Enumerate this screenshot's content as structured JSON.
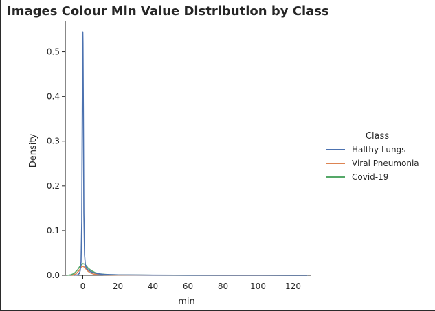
{
  "chart_data": {
    "type": "line",
    "title": "Images Colour Min Value Distribution by Class",
    "xlabel": "min",
    "ylabel": "Density",
    "xlim": [
      -10,
      130
    ],
    "ylim": [
      0,
      0.57
    ],
    "xticks": [
      0,
      20,
      40,
      60,
      80,
      100,
      120
    ],
    "yticks": [
      0.0,
      0.1,
      0.2,
      0.3,
      0.4,
      0.5
    ],
    "xtick_labels": [
      "0",
      "20",
      "40",
      "60",
      "80",
      "100",
      "120"
    ],
    "ytick_labels": [
      "0.0",
      "0.1",
      "0.2",
      "0.3",
      "0.4",
      "0.5"
    ],
    "grid": false,
    "legend": {
      "title": "Class",
      "position": "right"
    },
    "series": [
      {
        "name": "Halthy Lungs",
        "color": "#4c72b0",
        "x": [
          -5,
          -3,
          -2,
          -1.5,
          -1,
          -0.6,
          -0.3,
          -0.1,
          0,
          0.1,
          0.3,
          0.6,
          1,
          1.5,
          2,
          3,
          5,
          8,
          12,
          20,
          40,
          60,
          80,
          100,
          120,
          128
        ],
        "y": [
          0,
          0.001,
          0.004,
          0.01,
          0.03,
          0.12,
          0.38,
          0.52,
          0.545,
          0.52,
          0.38,
          0.14,
          0.045,
          0.022,
          0.016,
          0.012,
          0.007,
          0.004,
          0.002,
          0.001,
          0.0005,
          0.0003,
          0.0002,
          0.0002,
          0.0001,
          0
        ]
      },
      {
        "name": "Viral Pneumonia",
        "color": "#dd8452",
        "x": [
          -6,
          -4,
          -2,
          -1,
          0,
          1,
          2,
          3,
          4,
          6,
          8,
          12,
          20,
          40,
          60,
          80,
          100,
          120,
          128
        ],
        "y": [
          0,
          0.003,
          0.011,
          0.018,
          0.02,
          0.018,
          0.013,
          0.009,
          0.006,
          0.003,
          0.002,
          0.001,
          0.0006,
          0.0003,
          0.0002,
          0.0001,
          0.0001,
          0.0001,
          0
        ]
      },
      {
        "name": "Covid-19",
        "color": "#55a868",
        "x": [
          -9,
          -7,
          -5,
          -3,
          -1.5,
          0,
          1,
          2,
          3,
          5,
          7,
          10,
          15,
          20,
          30,
          40,
          60,
          80,
          100,
          120,
          128
        ],
        "y": [
          0,
          0.001,
          0.004,
          0.012,
          0.021,
          0.026,
          0.025,
          0.021,
          0.016,
          0.01,
          0.006,
          0.003,
          0.0015,
          0.001,
          0.0006,
          0.0004,
          0.0003,
          0.0002,
          0.0002,
          0.0001,
          0
        ]
      }
    ]
  }
}
